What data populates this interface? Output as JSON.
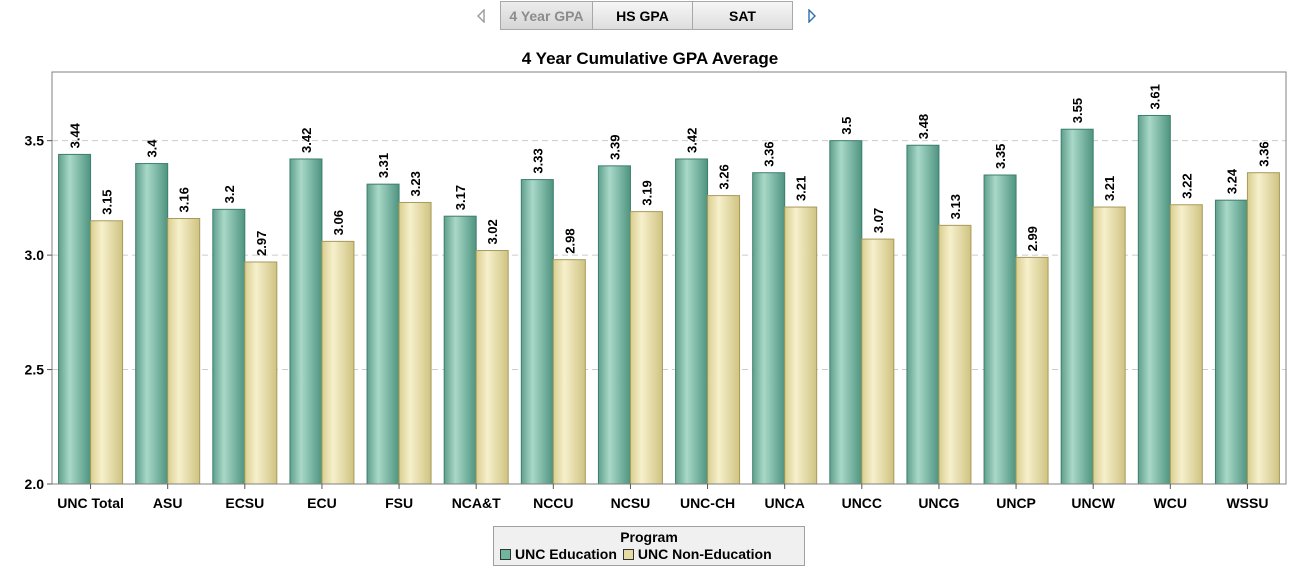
{
  "tabs": {
    "items": [
      {
        "label": "4 Year GPA",
        "active": true
      },
      {
        "label": "HS GPA",
        "active": false
      },
      {
        "label": "SAT",
        "active": false
      }
    ],
    "prev_icon": "chevron-left-icon",
    "next_icon": "chevron-right-icon"
  },
  "colors": {
    "series1": "#6fb5a0",
    "series1_dark": "#3d7f6e",
    "series2": "#e6dca4",
    "series2_dark": "#a89a5a",
    "grid": "#cccccc",
    "frame": "#808080"
  },
  "legend": {
    "title": "Program",
    "items": [
      "UNC Education",
      "UNC Non-Education"
    ]
  },
  "chart_data": {
    "type": "bar",
    "title": "4 Year Cumulative GPA Average",
    "xlabel": "",
    "ylabel": "",
    "ylim": [
      2.0,
      3.8
    ],
    "yticks": [
      "2.0",
      "2.5",
      "3.0",
      "3.5"
    ],
    "grid": "horizontal dashed",
    "legend_position": "bottom",
    "categories": [
      "UNC Total",
      "ASU",
      "ECSU",
      "ECU",
      "FSU",
      "NCA&T",
      "NCCU",
      "NCSU",
      "UNC-CH",
      "UNCA",
      "UNCC",
      "UNCG",
      "UNCP",
      "UNCW",
      "WCU",
      "WSSU"
    ],
    "series": [
      {
        "name": "UNC Education",
        "values": [
          3.44,
          3.4,
          3.2,
          3.42,
          3.31,
          3.17,
          3.33,
          3.39,
          3.42,
          3.36,
          3.5,
          3.48,
          3.35,
          3.55,
          3.61,
          3.24
        ],
        "labels": [
          "3.44",
          "3.4",
          "3.2",
          "3.42",
          "3.31",
          "3.17",
          "3.33",
          "3.39",
          "3.42",
          "3.36",
          "3.5",
          "3.48",
          "3.35",
          "3.55",
          "3.61",
          "3.24"
        ]
      },
      {
        "name": "UNC Non-Education",
        "values": [
          3.15,
          3.16,
          2.97,
          3.06,
          3.23,
          3.02,
          2.98,
          3.19,
          3.26,
          3.21,
          3.07,
          3.13,
          2.99,
          3.21,
          3.22,
          3.36
        ],
        "labels": [
          "3.15",
          "3.16",
          "2.97",
          "3.06",
          "3.23",
          "3.02",
          "2.98",
          "3.19",
          "3.26",
          "3.21",
          "3.07",
          "3.13",
          "2.99",
          "3.21",
          "3.22",
          "3.36"
        ]
      }
    ]
  }
}
